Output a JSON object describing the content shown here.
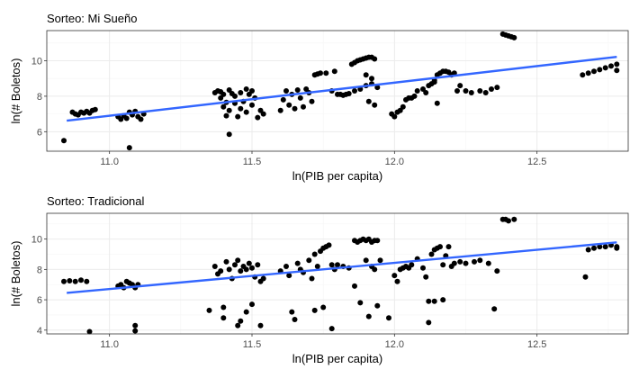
{
  "chart_data": [
    {
      "type": "scatter",
      "title": "Sorteo: Mi Sueño",
      "xlabel": "ln(PIB per capita)",
      "ylabel": "ln(# Boletos)",
      "xlim": [
        10.78,
        12.82
      ],
      "ylim": [
        4.9,
        11.7
      ],
      "xticks": [
        "11.0",
        "11.5",
        "12.0",
        "12.5"
      ],
      "yticks": [
        "6",
        "8",
        "10"
      ],
      "grid": true,
      "trend_color": "#3366ff",
      "trend": [
        [
          10.85,
          6.62
        ],
        [
          12.78,
          10.22
        ]
      ],
      "points": [
        [
          10.84,
          5.5
        ],
        [
          10.87,
          7.1
        ],
        [
          10.88,
          7.0
        ],
        [
          10.89,
          6.95
        ],
        [
          10.9,
          7.1
        ],
        [
          10.91,
          7.05
        ],
        [
          10.92,
          7.15
        ],
        [
          10.93,
          7.05
        ],
        [
          10.94,
          7.2
        ],
        [
          10.95,
          7.25
        ],
        [
          11.03,
          6.85
        ],
        [
          11.04,
          6.7
        ],
        [
          11.05,
          6.9
        ],
        [
          11.06,
          6.75
        ],
        [
          11.07,
          7.1
        ],
        [
          11.08,
          6.95
        ],
        [
          11.09,
          7.15
        ],
        [
          11.1,
          6.85
        ],
        [
          11.11,
          6.7
        ],
        [
          11.12,
          7.0
        ],
        [
          11.07,
          5.1
        ],
        [
          11.37,
          8.2
        ],
        [
          11.38,
          8.3
        ],
        [
          11.39,
          7.9
        ],
        [
          11.4,
          7.4
        ],
        [
          11.4,
          8.1
        ],
        [
          11.41,
          6.9
        ],
        [
          11.42,
          8.35
        ],
        [
          11.42,
          7.2
        ],
        [
          11.43,
          8.15
        ],
        [
          11.44,
          7.6
        ],
        [
          11.44,
          8.0
        ],
        [
          11.45,
          6.85
        ],
        [
          11.46,
          7.3
        ],
        [
          11.46,
          8.2
        ],
        [
          11.47,
          7.7
        ],
        [
          11.48,
          8.4
        ],
        [
          11.48,
          7.1
        ],
        [
          11.49,
          8.1
        ],
        [
          11.5,
          7.5
        ],
        [
          11.5,
          8.3
        ],
        [
          11.51,
          7.9
        ],
        [
          11.52,
          6.8
        ],
        [
          11.53,
          7.2
        ],
        [
          11.54,
          7.0
        ],
        [
          11.42,
          5.85
        ],
        [
          11.39,
          8.25
        ],
        [
          11.41,
          7.65
        ],
        [
          11.6,
          7.2
        ],
        [
          11.61,
          7.8
        ],
        [
          11.62,
          8.3
        ],
        [
          11.63,
          7.5
        ],
        [
          11.64,
          8.1
        ],
        [
          11.65,
          7.3
        ],
        [
          11.66,
          8.35
        ],
        [
          11.67,
          7.9
        ],
        [
          11.68,
          7.4
        ],
        [
          11.69,
          8.4
        ],
        [
          11.7,
          8.2
        ],
        [
          11.71,
          7.7
        ],
        [
          11.72,
          9.2
        ],
        [
          11.73,
          9.25
        ],
        [
          11.74,
          9.3
        ],
        [
          11.76,
          9.3
        ],
        [
          11.78,
          8.3
        ],
        [
          11.79,
          9.4
        ],
        [
          11.8,
          8.1
        ],
        [
          11.81,
          8.1
        ],
        [
          11.82,
          8.05
        ],
        [
          11.83,
          8.1
        ],
        [
          11.84,
          8.15
        ],
        [
          11.85,
          9.8
        ],
        [
          11.86,
          9.9
        ],
        [
          11.87,
          10.0
        ],
        [
          11.88,
          10.05
        ],
        [
          11.89,
          10.1
        ],
        [
          11.9,
          10.15
        ],
        [
          11.91,
          10.2
        ],
        [
          11.92,
          10.2
        ],
        [
          11.93,
          10.1
        ],
        [
          11.86,
          8.3
        ],
        [
          11.88,
          8.4
        ],
        [
          11.9,
          8.6
        ],
        [
          11.92,
          8.7
        ],
        [
          11.94,
          8.5
        ],
        [
          11.91,
          7.7
        ],
        [
          11.93,
          7.5
        ],
        [
          11.9,
          9.2
        ],
        [
          11.92,
          9.0
        ],
        [
          11.99,
          7.0
        ],
        [
          12.0,
          6.85
        ],
        [
          12.01,
          7.1
        ],
        [
          12.02,
          7.2
        ],
        [
          12.03,
          7.4
        ],
        [
          12.04,
          7.8
        ],
        [
          12.05,
          7.9
        ],
        [
          12.06,
          7.9
        ],
        [
          12.07,
          8.0
        ],
        [
          12.08,
          8.3
        ],
        [
          12.1,
          8.4
        ],
        [
          12.11,
          8.2
        ],
        [
          12.12,
          8.6
        ],
        [
          12.13,
          8.7
        ],
        [
          12.14,
          8.8
        ],
        [
          12.15,
          9.2
        ],
        [
          12.16,
          9.3
        ],
        [
          12.17,
          9.4
        ],
        [
          12.18,
          9.4
        ],
        [
          12.19,
          9.35
        ],
        [
          12.2,
          9.2
        ],
        [
          12.21,
          9.3
        ],
        [
          12.22,
          8.3
        ],
        [
          12.23,
          8.6
        ],
        [
          12.15,
          7.6
        ],
        [
          12.14,
          8.9
        ],
        [
          12.25,
          8.3
        ],
        [
          12.27,
          8.2
        ],
        [
          12.3,
          8.3
        ],
        [
          12.32,
          8.2
        ],
        [
          12.34,
          8.4
        ],
        [
          12.36,
          8.5
        ],
        [
          12.38,
          11.5
        ],
        [
          12.39,
          11.45
        ],
        [
          12.4,
          11.4
        ],
        [
          12.41,
          11.35
        ],
        [
          12.42,
          11.3
        ],
        [
          12.66,
          9.2
        ],
        [
          12.68,
          9.3
        ],
        [
          12.7,
          9.4
        ],
        [
          12.72,
          9.5
        ],
        [
          12.74,
          9.6
        ],
        [
          12.76,
          9.7
        ],
        [
          12.78,
          9.8
        ],
        [
          12.78,
          9.45
        ]
      ]
    },
    {
      "type": "scatter",
      "title": "Sorteo: Tradicional",
      "xlabel": "ln(PIB per capita)",
      "ylabel": "ln(# Boletos)",
      "xlim": [
        10.78,
        12.82
      ],
      "ylim": [
        3.75,
        11.7
      ],
      "xticks": [
        "11.0",
        "11.5",
        "12.0",
        "12.5"
      ],
      "yticks": [
        "4",
        "6",
        "8",
        "10"
      ],
      "grid": true,
      "trend_color": "#3366ff",
      "trend": [
        [
          10.85,
          6.45
        ],
        [
          12.78,
          9.78
        ]
      ],
      "points": [
        [
          10.84,
          7.2
        ],
        [
          10.86,
          7.25
        ],
        [
          10.88,
          7.2
        ],
        [
          10.9,
          7.3
        ],
        [
          10.92,
          7.2
        ],
        [
          10.93,
          3.9
        ],
        [
          11.03,
          6.9
        ],
        [
          11.04,
          7.0
        ],
        [
          11.05,
          6.8
        ],
        [
          11.06,
          7.2
        ],
        [
          11.07,
          7.1
        ],
        [
          11.08,
          7.0
        ],
        [
          11.09,
          6.8
        ],
        [
          11.1,
          7.0
        ],
        [
          11.09,
          4.3
        ],
        [
          11.09,
          3.95
        ],
        [
          11.35,
          5.3
        ],
        [
          11.37,
          8.2
        ],
        [
          11.38,
          7.7
        ],
        [
          11.39,
          7.9
        ],
        [
          11.4,
          5.5
        ],
        [
          11.41,
          8.5
        ],
        [
          11.42,
          8.0
        ],
        [
          11.43,
          7.4
        ],
        [
          11.44,
          8.3
        ],
        [
          11.45,
          8.6
        ],
        [
          11.46,
          7.9
        ],
        [
          11.47,
          8.2
        ],
        [
          11.48,
          8.0
        ],
        [
          11.49,
          8.4
        ],
        [
          11.5,
          8.1
        ],
        [
          11.51,
          7.5
        ],
        [
          11.52,
          8.3
        ],
        [
          11.53,
          7.2
        ],
        [
          11.54,
          7.4
        ],
        [
          11.45,
          4.3
        ],
        [
          11.46,
          4.6
        ],
        [
          11.48,
          5.2
        ],
        [
          11.5,
          5.7
        ],
        [
          11.53,
          4.3
        ],
        [
          11.4,
          4.8
        ],
        [
          11.6,
          7.9
        ],
        [
          11.62,
          8.2
        ],
        [
          11.63,
          7.6
        ],
        [
          11.64,
          5.2
        ],
        [
          11.65,
          4.7
        ],
        [
          11.66,
          8.4
        ],
        [
          11.67,
          8.0
        ],
        [
          11.68,
          7.8
        ],
        [
          11.7,
          8.6
        ],
        [
          11.71,
          7.4
        ],
        [
          11.72,
          9.0
        ],
        [
          11.73,
          8.2
        ],
        [
          11.74,
          9.2
        ],
        [
          11.75,
          9.4
        ],
        [
          11.76,
          9.5
        ],
        [
          11.77,
          9.6
        ],
        [
          11.78,
          8.3
        ],
        [
          11.79,
          8.0
        ],
        [
          11.75,
          5.5
        ],
        [
          11.72,
          5.3
        ],
        [
          11.78,
          4.1
        ],
        [
          11.8,
          8.3
        ],
        [
          11.82,
          8.2
        ],
        [
          11.84,
          8.1
        ],
        [
          11.86,
          9.9
        ],
        [
          11.87,
          9.8
        ],
        [
          11.88,
          9.9
        ],
        [
          11.89,
          10.0
        ],
        [
          11.9,
          9.9
        ],
        [
          11.91,
          10.0
        ],
        [
          11.92,
          9.8
        ],
        [
          11.93,
          9.9
        ],
        [
          11.94,
          9.9
        ],
        [
          11.86,
          6.9
        ],
        [
          11.88,
          5.8
        ],
        [
          11.9,
          8.6
        ],
        [
          11.92,
          8.2
        ],
        [
          11.93,
          8.0
        ],
        [
          11.94,
          5.6
        ],
        [
          11.91,
          4.9
        ],
        [
          11.95,
          8.6
        ],
        [
          11.98,
          4.8
        ],
        [
          12.0,
          7.6
        ],
        [
          12.01,
          7.2
        ],
        [
          12.02,
          8.0
        ],
        [
          12.03,
          8.1
        ],
        [
          12.04,
          8.2
        ],
        [
          12.05,
          8.1
        ],
        [
          12.06,
          8.3
        ],
        [
          12.08,
          8.7
        ],
        [
          12.1,
          8.1
        ],
        [
          12.11,
          7.5
        ],
        [
          12.12,
          5.9
        ],
        [
          12.13,
          9.0
        ],
        [
          12.14,
          9.3
        ],
        [
          12.15,
          9.4
        ],
        [
          12.16,
          9.5
        ],
        [
          12.17,
          8.3
        ],
        [
          12.18,
          8.9
        ],
        [
          12.19,
          9.5
        ],
        [
          12.2,
          8.2
        ],
        [
          12.21,
          8.4
        ],
        [
          12.12,
          4.5
        ],
        [
          12.14,
          5.9
        ],
        [
          12.17,
          6.0
        ],
        [
          12.23,
          8.5
        ],
        [
          12.25,
          8.4
        ],
        [
          12.28,
          8.5
        ],
        [
          12.3,
          8.6
        ],
        [
          12.33,
          8.4
        ],
        [
          12.35,
          5.4
        ],
        [
          12.36,
          7.9
        ],
        [
          12.38,
          11.3
        ],
        [
          12.39,
          11.3
        ],
        [
          12.4,
          11.2
        ],
        [
          12.42,
          11.3
        ],
        [
          12.67,
          7.5
        ],
        [
          12.68,
          9.3
        ],
        [
          12.7,
          9.4
        ],
        [
          12.72,
          9.5
        ],
        [
          12.74,
          9.5
        ],
        [
          12.76,
          9.6
        ],
        [
          12.78,
          9.5
        ],
        [
          12.78,
          9.4
        ]
      ]
    }
  ]
}
